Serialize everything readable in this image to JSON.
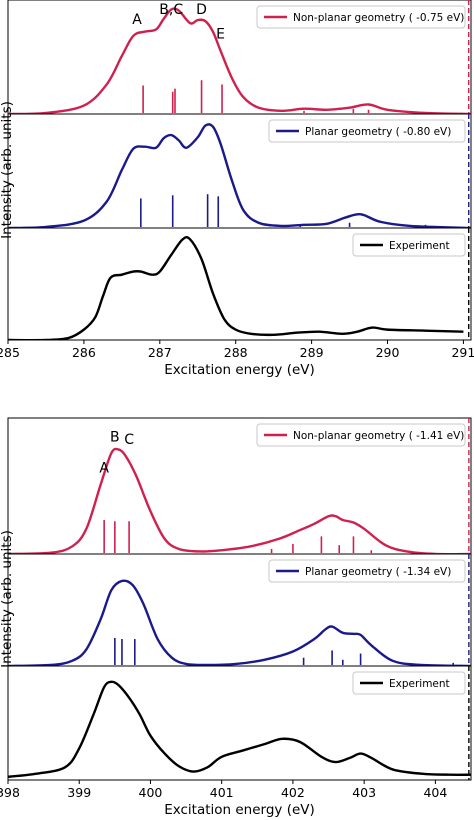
{
  "chart_data": [
    {
      "type": "line",
      "xlabel": "Excitation energy (eV)",
      "ylabel": "Intensity (arb. units)",
      "xlim": [
        285,
        291.1
      ],
      "xticks": [
        "285",
        "286",
        "287",
        "288",
        "289",
        "290",
        "291"
      ],
      "xtick_values": [
        285,
        286,
        287,
        288,
        289,
        290,
        291
      ],
      "grid": false,
      "legend_position": "top-right",
      "panels": [
        {
          "name": "Non-planar geometry ( -0.75 eV)",
          "color": "#d0204e",
          "ylim": [
            0,
            1.08
          ],
          "x": [
            285.0,
            285.5,
            286.0,
            286.3,
            286.5,
            286.65,
            286.8,
            286.95,
            287.05,
            287.15,
            287.25,
            287.4,
            287.5,
            287.6,
            287.7,
            287.8,
            287.95,
            288.1,
            288.3,
            288.6,
            288.9,
            289.2,
            289.5,
            289.75,
            290.0,
            290.5,
            291.1
          ],
          "y": [
            0.0,
            0.01,
            0.08,
            0.28,
            0.55,
            0.74,
            0.78,
            0.8,
            0.9,
            0.99,
            0.98,
            0.86,
            0.89,
            0.88,
            0.78,
            0.6,
            0.34,
            0.16,
            0.06,
            0.03,
            0.05,
            0.04,
            0.06,
            0.09,
            0.04,
            0.01,
            0.0
          ],
          "sticks": [
            [
              286.78,
              0.27
            ],
            [
              287.17,
              0.21
            ],
            [
              287.2,
              0.24
            ],
            [
              287.55,
              0.32
            ],
            [
              287.82,
              0.28
            ],
            [
              288.9,
              0.03
            ],
            [
              289.55,
              0.05
            ],
            [
              289.75,
              0.04
            ]
          ],
          "vline": 291.07,
          "peak_labels": [
            {
              "text": "A",
              "x": 286.7
            },
            {
              "text": "B,C",
              "x": 287.15
            },
            {
              "text": "D",
              "x": 287.55
            },
            {
              "text": "E",
              "x": 287.8
            }
          ]
        },
        {
          "name": "Planar geometry ( -0.80 eV)",
          "color": "#1a1a8c",
          "ylim": [
            0,
            1.08
          ],
          "x": [
            285.0,
            285.5,
            286.0,
            286.3,
            286.5,
            286.65,
            286.8,
            286.95,
            287.05,
            287.15,
            287.25,
            287.35,
            287.5,
            287.6,
            287.7,
            287.8,
            287.95,
            288.1,
            288.3,
            288.6,
            288.9,
            289.2,
            289.45,
            289.65,
            289.9,
            290.3,
            291.1
          ],
          "y": [
            0.0,
            0.01,
            0.07,
            0.25,
            0.55,
            0.75,
            0.77,
            0.76,
            0.85,
            0.88,
            0.83,
            0.76,
            0.86,
            0.97,
            0.96,
            0.8,
            0.45,
            0.17,
            0.05,
            0.02,
            0.03,
            0.04,
            0.1,
            0.13,
            0.06,
            0.02,
            0.0
          ],
          "sticks": [
            [
              286.75,
              0.28
            ],
            [
              287.17,
              0.31
            ],
            [
              287.63,
              0.32
            ],
            [
              287.77,
              0.3
            ],
            [
              288.85,
              0.03
            ],
            [
              289.5,
              0.05
            ],
            [
              290.5,
              0.03
            ]
          ],
          "vline": 291.07
        },
        {
          "name": "Experiment",
          "color": "#000000",
          "ylim": [
            0,
            1.08
          ],
          "x": [
            285.0,
            285.5,
            285.8,
            286.0,
            286.15,
            286.25,
            286.35,
            286.5,
            286.65,
            286.75,
            286.9,
            287.0,
            287.15,
            287.3,
            287.4,
            287.55,
            287.7,
            287.85,
            288.0,
            288.2,
            288.5,
            288.8,
            289.1,
            289.4,
            289.6,
            289.8,
            290.0,
            290.5,
            291.0
          ],
          "y": [
            0.0,
            0.0,
            0.02,
            0.1,
            0.22,
            0.42,
            0.6,
            0.63,
            0.66,
            0.66,
            0.63,
            0.66,
            0.82,
            0.97,
            0.97,
            0.78,
            0.45,
            0.2,
            0.1,
            0.06,
            0.05,
            0.07,
            0.08,
            0.06,
            0.08,
            0.12,
            0.1,
            0.09,
            0.08
          ],
          "vline": 291.07
        }
      ]
    },
    {
      "type": "line",
      "xlabel": "Excitation energy (eV)",
      "ylabel": "Intensity (arb. units)",
      "xlim": [
        398,
        404.5
      ],
      "xticks": [
        "398",
        "399",
        "400",
        "401",
        "402",
        "403",
        "404"
      ],
      "xtick_values": [
        398,
        399,
        400,
        401,
        402,
        403,
        404
      ],
      "grid": false,
      "legend_position": "top-right",
      "panels": [
        {
          "name": "Non-planar geometry ( -1.41 eV)",
          "color": "#d0204e",
          "ylim": [
            0,
            1.08
          ],
          "x": [
            398.0,
            398.6,
            398.9,
            399.1,
            399.3,
            399.45,
            399.55,
            399.65,
            399.8,
            400.0,
            400.2,
            400.4,
            400.7,
            401.0,
            401.4,
            401.8,
            402.1,
            402.3,
            402.5,
            402.6,
            402.7,
            402.85,
            403.0,
            403.3,
            403.6,
            404.0,
            404.5
          ],
          "y": [
            0.0,
            0.01,
            0.06,
            0.2,
            0.55,
            0.8,
            0.83,
            0.78,
            0.62,
            0.34,
            0.12,
            0.04,
            0.02,
            0.03,
            0.06,
            0.12,
            0.19,
            0.24,
            0.3,
            0.3,
            0.27,
            0.25,
            0.2,
            0.07,
            0.02,
            0.0,
            0.0
          ],
          "sticks": [
            [
              399.35,
              0.27
            ],
            [
              399.5,
              0.26
            ],
            [
              399.7,
              0.26
            ],
            [
              401.7,
              0.04
            ],
            [
              402.0,
              0.08
            ],
            [
              402.4,
              0.14
            ],
            [
              402.65,
              0.07
            ],
            [
              402.85,
              0.14
            ],
            [
              403.1,
              0.03
            ]
          ],
          "vline": 404.47,
          "peak_labels": [
            {
              "text": "A",
              "x": 399.35
            },
            {
              "text": "B",
              "x": 399.5
            },
            {
              "text": "C",
              "x": 399.7
            }
          ]
        },
        {
          "name": "Planar geometry ( -1.34 eV)",
          "color": "#1a1a8c",
          "ylim": [
            0,
            1.08
          ],
          "x": [
            398.0,
            398.6,
            398.9,
            399.1,
            399.3,
            399.45,
            399.6,
            399.75,
            399.9,
            400.1,
            400.3,
            400.5,
            400.8,
            401.2,
            401.6,
            402.0,
            402.3,
            402.45,
            402.55,
            402.7,
            402.85,
            402.95,
            403.1,
            403.4,
            403.8,
            404.5
          ],
          "y": [
            0.0,
            0.01,
            0.05,
            0.16,
            0.45,
            0.73,
            0.82,
            0.78,
            0.6,
            0.26,
            0.08,
            0.02,
            0.01,
            0.02,
            0.06,
            0.14,
            0.26,
            0.35,
            0.38,
            0.32,
            0.31,
            0.3,
            0.2,
            0.05,
            0.01,
            0.0
          ],
          "sticks": [
            [
              399.5,
              0.27
            ],
            [
              399.6,
              0.26
            ],
            [
              399.78,
              0.26
            ],
            [
              402.15,
              0.08
            ],
            [
              402.55,
              0.15
            ],
            [
              402.7,
              0.06
            ],
            [
              402.95,
              0.12
            ],
            [
              404.25,
              0.03
            ]
          ],
          "vline": 404.47
        },
        {
          "name": "Experiment",
          "color": "#000000",
          "ylim": [
            0,
            1.08
          ],
          "x": [
            398.0,
            398.4,
            398.8,
            399.0,
            399.2,
            399.35,
            399.45,
            399.55,
            399.7,
            399.85,
            400.0,
            400.2,
            400.4,
            400.6,
            400.8,
            401.0,
            401.3,
            401.6,
            401.85,
            402.1,
            402.4,
            402.6,
            402.8,
            402.95,
            403.1,
            403.4,
            403.8,
            404.2,
            404.5
          ],
          "y": [
            0.03,
            0.06,
            0.12,
            0.3,
            0.62,
            0.88,
            0.93,
            0.9,
            0.78,
            0.62,
            0.42,
            0.25,
            0.13,
            0.08,
            0.12,
            0.22,
            0.28,
            0.34,
            0.39,
            0.36,
            0.22,
            0.17,
            0.21,
            0.25,
            0.21,
            0.1,
            0.06,
            0.05,
            0.05
          ],
          "vline": 404.47
        }
      ]
    }
  ]
}
